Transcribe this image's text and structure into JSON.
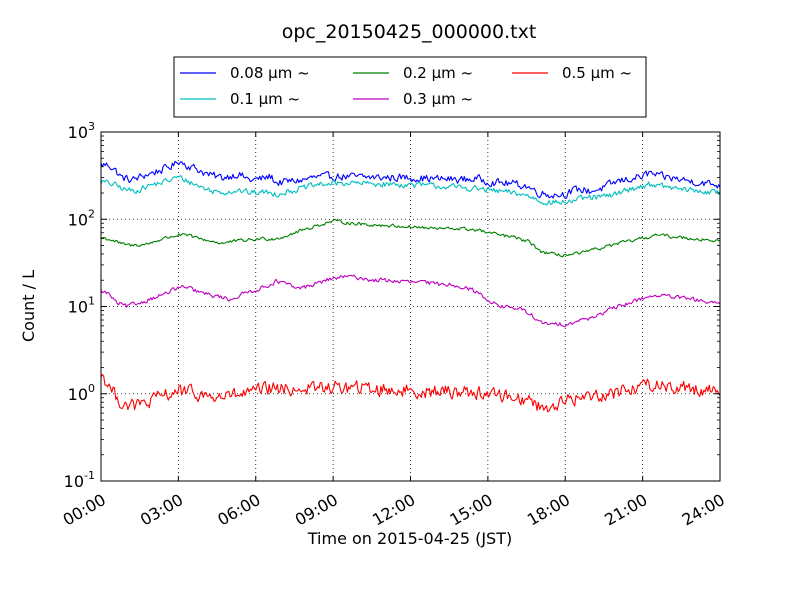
{
  "chart_data": {
    "type": "line",
    "title": "opc_20150425_000000.txt",
    "xlabel": "Time on 2015-04-25 (JST)",
    "ylabel": "Count / L",
    "y_scale": "log",
    "ylim": [
      0.1,
      1000
    ],
    "y_tick_labels": [
      {
        "value": 0.1,
        "base": "10",
        "exp": "-1"
      },
      {
        "value": 1,
        "base": "10",
        "exp": "0"
      },
      {
        "value": 10,
        "base": "10",
        "exp": "1"
      },
      {
        "value": 100,
        "base": "10",
        "exp": "2"
      },
      {
        "value": 1000,
        "base": "10",
        "exp": "3"
      }
    ],
    "xlim": [
      0,
      24
    ],
    "x_tick_labels": [
      "00:00",
      "03:00",
      "06:00",
      "09:00",
      "12:00",
      "15:00",
      "18:00",
      "21:00",
      "24:00"
    ],
    "grid": true,
    "legend_position": "top",
    "series": [
      {
        "name": "0.08 μm ~",
        "color": "#0000ff",
        "noise": 0.09,
        "points": [
          [
            0,
            420
          ],
          [
            0.3,
            420
          ],
          [
            0.5,
            380
          ],
          [
            0.8,
            300
          ],
          [
            1.2,
            280
          ],
          [
            1.7,
            320
          ],
          [
            2.5,
            380
          ],
          [
            2.9,
            430
          ],
          [
            3.0,
            480
          ],
          [
            3.3,
            420
          ],
          [
            3.7,
            380
          ],
          [
            4.2,
            320
          ],
          [
            4.7,
            300
          ],
          [
            5.3,
            330
          ],
          [
            5.8,
            280
          ],
          [
            6.2,
            290
          ],
          [
            6.6,
            310
          ],
          [
            6.8,
            260
          ],
          [
            7.2,
            270
          ],
          [
            7.8,
            280
          ],
          [
            8.2,
            300
          ],
          [
            9.0,
            310
          ],
          [
            10.0,
            305
          ],
          [
            11.0,
            300
          ],
          [
            12.0,
            300
          ],
          [
            13.0,
            290
          ],
          [
            14.0,
            285
          ],
          [
            14.6,
            290
          ],
          [
            15.2,
            265
          ],
          [
            16.0,
            255
          ],
          [
            16.5,
            240
          ],
          [
            17.0,
            200
          ],
          [
            17.5,
            190
          ],
          [
            18.0,
            195
          ],
          [
            18.5,
            220
          ],
          [
            19.0,
            210
          ],
          [
            19.5,
            230
          ],
          [
            20.0,
            270
          ],
          [
            20.5,
            290
          ],
          [
            21.0,
            310
          ],
          [
            21.3,
            340
          ],
          [
            21.6,
            310
          ],
          [
            22.0,
            300
          ],
          [
            23.0,
            270
          ],
          [
            24,
            245
          ]
        ]
      },
      {
        "name": "0.1 μm ~",
        "color": "#00bfbf",
        "noise": 0.07,
        "points": [
          [
            0,
            270
          ],
          [
            0.5,
            250
          ],
          [
            0.9,
            220
          ],
          [
            1.3,
            210
          ],
          [
            1.8,
            240
          ],
          [
            2.5,
            270
          ],
          [
            3.0,
            305
          ],
          [
            3.4,
            270
          ],
          [
            3.8,
            240
          ],
          [
            4.3,
            210
          ],
          [
            4.8,
            205
          ],
          [
            5.3,
            215
          ],
          [
            5.8,
            200
          ],
          [
            6.3,
            205
          ],
          [
            6.8,
            195
          ],
          [
            7.3,
            210
          ],
          [
            7.8,
            225
          ],
          [
            8.3,
            245
          ],
          [
            8.8,
            255
          ],
          [
            9.5,
            260
          ],
          [
            10.5,
            255
          ],
          [
            11.5,
            250
          ],
          [
            12.5,
            245
          ],
          [
            13.5,
            235
          ],
          [
            14.5,
            225
          ],
          [
            15.3,
            210
          ],
          [
            16.0,
            200
          ],
          [
            16.6,
            185
          ],
          [
            17.1,
            160
          ],
          [
            17.6,
            155
          ],
          [
            18.2,
            160
          ],
          [
            18.8,
            175
          ],
          [
            19.4,
            180
          ],
          [
            19.8,
            185
          ],
          [
            20.2,
            210
          ],
          [
            20.6,
            225
          ],
          [
            21.0,
            240
          ],
          [
            21.4,
            255
          ],
          [
            21.7,
            240
          ],
          [
            22.5,
            220
          ],
          [
            23.2,
            210
          ],
          [
            24,
            200
          ]
        ]
      },
      {
        "name": "0.2 μm ~",
        "color": "#008000",
        "noise": 0.04,
        "points": [
          [
            0,
            62
          ],
          [
            0.4,
            58
          ],
          [
            0.8,
            52
          ],
          [
            1.2,
            50
          ],
          [
            1.8,
            52
          ],
          [
            2.4,
            60
          ],
          [
            3.0,
            66
          ],
          [
            3.4,
            65
          ],
          [
            3.8,
            60
          ],
          [
            4.3,
            56
          ],
          [
            4.7,
            53
          ],
          [
            5.2,
            56
          ],
          [
            5.8,
            58
          ],
          [
            6.3,
            60
          ],
          [
            6.8,
            60
          ],
          [
            7.2,
            65
          ],
          [
            7.8,
            75
          ],
          [
            8.4,
            85
          ],
          [
            9.0,
            95
          ],
          [
            9.5,
            92
          ],
          [
            10.0,
            88
          ],
          [
            11.0,
            85
          ],
          [
            12.0,
            82
          ],
          [
            13.0,
            78
          ],
          [
            14.0,
            78
          ],
          [
            14.6,
            75
          ],
          [
            15.2,
            68
          ],
          [
            16.0,
            62
          ],
          [
            16.6,
            55
          ],
          [
            17.1,
            42
          ],
          [
            17.6,
            39
          ],
          [
            18.2,
            39
          ],
          [
            18.8,
            42
          ],
          [
            19.4,
            47
          ],
          [
            20.0,
            52
          ],
          [
            20.6,
            57
          ],
          [
            21.0,
            60
          ],
          [
            21.5,
            66
          ],
          [
            22.0,
            64
          ],
          [
            23.0,
            60
          ],
          [
            24,
            56
          ]
        ]
      },
      {
        "name": "0.3 μm ~",
        "color": "#bf00bf",
        "noise": 0.05,
        "points": [
          [
            0,
            15
          ],
          [
            0.3,
            14
          ],
          [
            0.6,
            11
          ],
          [
            1.0,
            10
          ],
          [
            1.5,
            11
          ],
          [
            2.0,
            12.5
          ],
          [
            2.5,
            14
          ],
          [
            3.0,
            16.5
          ],
          [
            3.3,
            16.5
          ],
          [
            3.7,
            15
          ],
          [
            4.2,
            13.5
          ],
          [
            4.6,
            13
          ],
          [
            5.0,
            12
          ],
          [
            5.4,
            13.5
          ],
          [
            5.8,
            15
          ],
          [
            6.3,
            16.5
          ],
          [
            6.8,
            19.5
          ],
          [
            7.2,
            18
          ],
          [
            7.6,
            16
          ],
          [
            8.0,
            17
          ],
          [
            8.5,
            19
          ],
          [
            9.0,
            21
          ],
          [
            9.5,
            22
          ],
          [
            10.0,
            21.5
          ],
          [
            10.5,
            20
          ],
          [
            11.0,
            20
          ],
          [
            12.0,
            19
          ],
          [
            12.5,
            19
          ],
          [
            13.0,
            18
          ],
          [
            13.5,
            18
          ],
          [
            14.0,
            17
          ],
          [
            14.5,
            15
          ],
          [
            15.0,
            12
          ],
          [
            15.5,
            10
          ],
          [
            16.2,
            9.5
          ],
          [
            16.7,
            8
          ],
          [
            17.0,
            6.5
          ],
          [
            17.5,
            6.2
          ],
          [
            18.0,
            6.3
          ],
          [
            18.5,
            6.8
          ],
          [
            19.0,
            7.5
          ],
          [
            19.5,
            8.5
          ],
          [
            20.0,
            9.8
          ],
          [
            20.5,
            11
          ],
          [
            21.0,
            12.5
          ],
          [
            21.5,
            13.5
          ],
          [
            22.0,
            13
          ],
          [
            23.0,
            12
          ],
          [
            24,
            10.5
          ]
        ]
      },
      {
        "name": "0.5 μm ~",
        "color": "#ff0000",
        "noise": 0.16,
        "points": [
          [
            0,
            1.7
          ],
          [
            0.2,
            1.4
          ],
          [
            0.5,
            1.0
          ],
          [
            0.8,
            0.8
          ],
          [
            1.2,
            0.72
          ],
          [
            1.8,
            0.78
          ],
          [
            2.4,
            0.95
          ],
          [
            3.0,
            1.08
          ],
          [
            3.5,
            1.02
          ],
          [
            4.0,
            0.95
          ],
          [
            4.5,
            0.9
          ],
          [
            5.0,
            0.95
          ],
          [
            5.5,
            0.98
          ],
          [
            6.0,
            1.05
          ],
          [
            6.5,
            1.15
          ],
          [
            7.0,
            1.12
          ],
          [
            8.0,
            1.15
          ],
          [
            9.0,
            1.18
          ],
          [
            10.0,
            1.16
          ],
          [
            11.0,
            1.12
          ],
          [
            12.0,
            1.08
          ],
          [
            13.0,
            1.05
          ],
          [
            14.0,
            1.07
          ],
          [
            15.0,
            1.0
          ],
          [
            16.0,
            0.92
          ],
          [
            16.6,
            0.85
          ],
          [
            17.1,
            0.68
          ],
          [
            17.6,
            0.75
          ],
          [
            18.2,
            0.85
          ],
          [
            19.0,
            0.95
          ],
          [
            19.6,
            1.0
          ],
          [
            20.0,
            1.05
          ],
          [
            20.6,
            1.15
          ],
          [
            21.0,
            1.25
          ],
          [
            21.5,
            1.3
          ],
          [
            22.0,
            1.2
          ],
          [
            23.0,
            1.15
          ],
          [
            24,
            1.1
          ]
        ]
      }
    ]
  }
}
